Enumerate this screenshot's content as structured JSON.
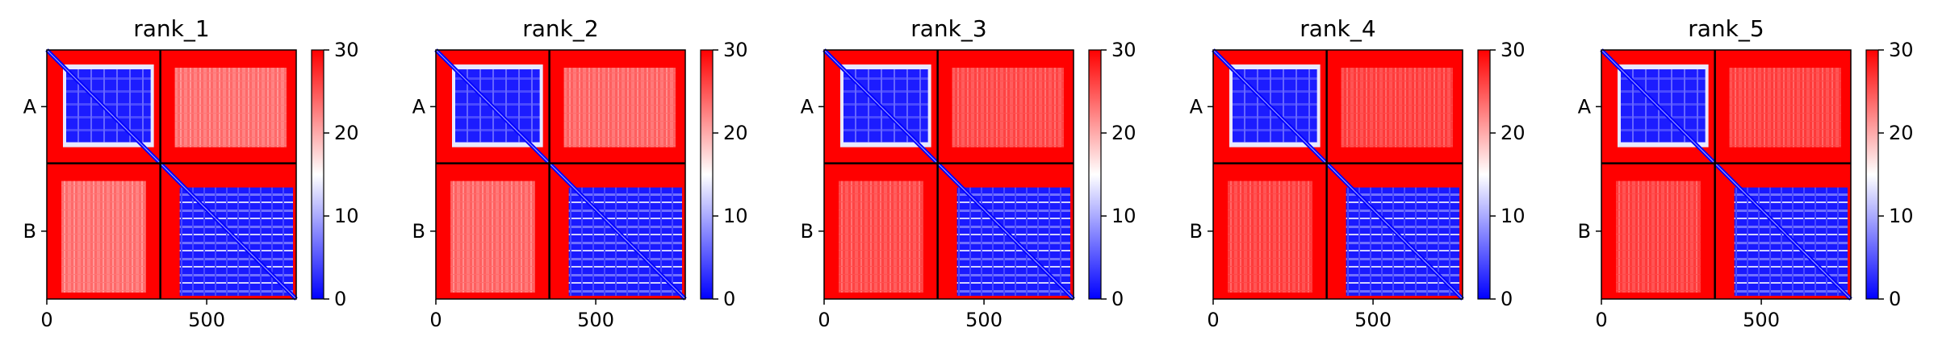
{
  "chart_data": {
    "type": "heatmap",
    "colorbar": {
      "cmap": "bwr",
      "vmin": 0,
      "vmax": 30,
      "ticks": [
        "0",
        "10",
        "20",
        "30"
      ]
    },
    "xticks": {
      "values": [
        0,
        500
      ],
      "labels": [
        "0",
        "500"
      ]
    },
    "xlim": [
      0,
      780
    ],
    "chain_boundary": 355,
    "chains": [
      {
        "label": "A",
        "start": 0,
        "end": 355
      },
      {
        "label": "B",
        "start": 355,
        "end": 780
      }
    ],
    "panels": [
      {
        "title": "rank_1",
        "inter_chain_error": 22
      },
      {
        "title": "rank_2",
        "inter_chain_error": 23
      },
      {
        "title": "rank_3",
        "inter_chain_error": 26
      },
      {
        "title": "rank_4",
        "inter_chain_error": 27
      },
      {
        "title": "rank_5",
        "inter_chain_error": 27
      }
    ],
    "grid": false
  }
}
